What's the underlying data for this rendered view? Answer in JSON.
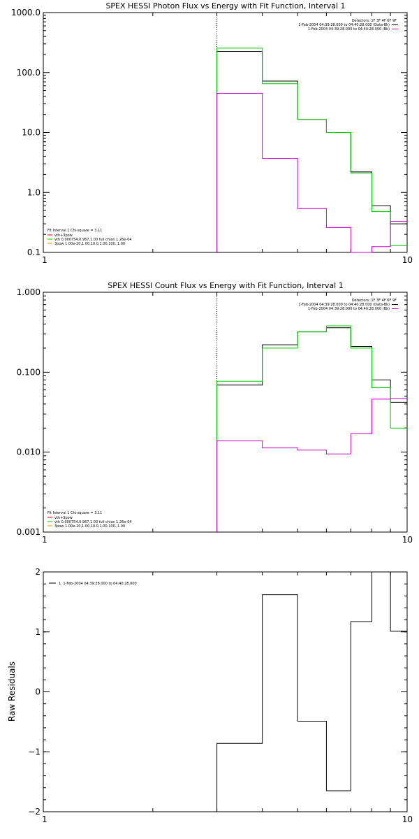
{
  "colors": {
    "black": "#000000",
    "green": "#00cc00",
    "magenta": "#cc00cc",
    "orange": "#e6a000",
    "red": "#cc0000"
  },
  "chart_data": [
    {
      "type": "line",
      "title": "SPEX HESSI Photon Flux vs Energy with Fit Function, Interval 1",
      "ylabel": "",
      "xscale": "log",
      "yscale": "log",
      "xlim": [
        1,
        10
      ],
      "ylim": [
        0.1,
        1000
      ],
      "xticks": [
        {
          "v": 1,
          "label": "1"
        },
        {
          "v": 10,
          "label": "10"
        }
      ],
      "yticks": [
        {
          "v": 0.1,
          "label": "0.1"
        },
        {
          "v": 1,
          "label": "1.0"
        },
        {
          "v": 10,
          "label": "10.0"
        },
        {
          "v": 100,
          "label": "100.0"
        },
        {
          "v": 1000,
          "label": "1000.0"
        }
      ],
      "marker_x": 3,
      "legend_top": [
        "Detectors: 1F 3F 4F 6F 9F",
        "1-Feb-2004 04:39:28.000 to 04:40:28.000 (Data-Bk)",
        "1-Feb-2004 04:39:28.000 to 04:40:28.000 (Bk)"
      ],
      "legend_bottom": [
        "Fit Interval 1    Chi-square = 3.11",
        "vth+3pow",
        "vth 0.000754,0.967,1.00  full chian 1.26e-04",
        "3pow 1.00e-20,1.00,10.0,1.00,100.,1.00"
      ],
      "edges": [
        3,
        4,
        5,
        6,
        7,
        8,
        9,
        10
      ],
      "series": [
        {
          "key": "data_minus_bk",
          "color": "#000000",
          "values": [
            225,
            72,
            16.5,
            10,
            2.2,
            0.6,
            0.3
          ]
        },
        {
          "key": "fit",
          "color": "#00cc00",
          "values": [
            255,
            65,
            16.5,
            10,
            2.1,
            0.48,
            0.13
          ]
        },
        {
          "key": "bk",
          "color": "#cc00cc",
          "values": [
            45,
            3.7,
            0.54,
            0.26,
            0.098,
            0.125,
            0.33
          ]
        }
      ]
    },
    {
      "type": "line",
      "title": "SPEX HESSI Count Flux vs Energy with Fit Function, Interval 1",
      "ylabel": "",
      "xscale": "log",
      "yscale": "log",
      "xlim": [
        1,
        10
      ],
      "ylim": [
        0.001,
        1
      ],
      "xticks": [
        {
          "v": 1,
          "label": "1"
        },
        {
          "v": 10,
          "label": "10"
        }
      ],
      "yticks": [
        {
          "v": 0.001,
          "label": "0.001"
        },
        {
          "v": 0.01,
          "label": "0.010"
        },
        {
          "v": 0.1,
          "label": "0.100"
        },
        {
          "v": 1,
          "label": "1.000"
        }
      ],
      "marker_x": 3,
      "legend_top": [
        "Detectors: 1F 3F 4F 6F 9F",
        "1-Feb-2004 04:39:28.000 to 04:40:28.000 (Data-Bk)",
        "1-Feb-2004 04:39:28.000 to 04:40:28.000 (Bk)"
      ],
      "legend_bottom": [
        "Fit Interval 1    Chi-square = 3.11",
        "vth+3pow",
        "vth 0.000754,0.967,1.00  full chian 1.26e-04",
        "3pow 1.00e-20,1.00,10.0,1.00,100.,1.00"
      ],
      "edges": [
        3,
        4,
        5,
        6,
        7,
        8,
        9,
        10
      ],
      "series": [
        {
          "key": "data_minus_bk",
          "color": "#000000",
          "values": [
            0.069,
            0.22,
            0.32,
            0.36,
            0.21,
            0.08,
            0.042
          ]
        },
        {
          "key": "fit",
          "color": "#00cc00",
          "values": [
            0.077,
            0.2,
            0.32,
            0.38,
            0.2,
            0.064,
            0.02
          ]
        },
        {
          "key": "bk",
          "color": "#cc00cc",
          "values": [
            0.0138,
            0.0113,
            0.0106,
            0.0095,
            0.017,
            0.046,
            0.047
          ]
        }
      ]
    },
    {
      "type": "line",
      "title": "",
      "ylabel": "Raw Residuals",
      "xscale": "log",
      "yscale": "linear",
      "xlim": [
        1,
        10
      ],
      "ylim": [
        -2,
        2
      ],
      "xticks": [
        {
          "v": 1,
          "label": "1"
        },
        {
          "v": 10,
          "label": "10"
        }
      ],
      "yticks": [
        {
          "v": -2,
          "label": "−2"
        },
        {
          "v": -1,
          "label": "−1"
        },
        {
          "v": 0,
          "label": "0"
        },
        {
          "v": 1,
          "label": "1"
        },
        {
          "v": 2,
          "label": "2"
        }
      ],
      "legend_top_left": "1.  1-Feb-2004 04:39:28.000 to 04:40:28.000",
      "edges": [
        3,
        4,
        5,
        6,
        7,
        8,
        9,
        10
      ],
      "series": [
        {
          "key": "residuals",
          "color": "#000000",
          "values": [
            -0.86,
            1.62,
            -0.49,
            -1.65,
            1.17,
            2.0,
            1.01
          ]
        }
      ]
    }
  ]
}
